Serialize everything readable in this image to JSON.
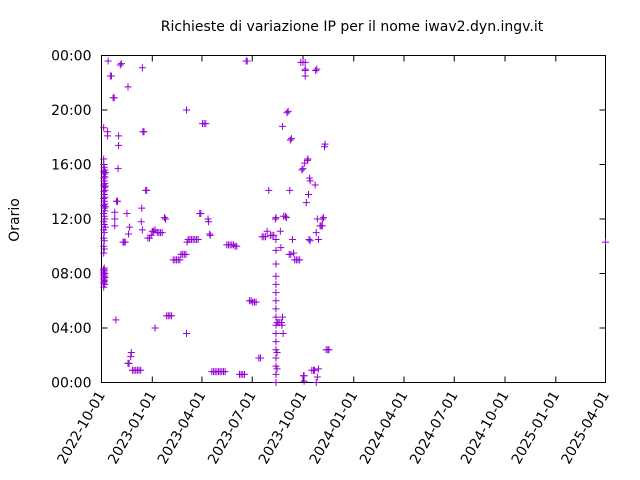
{
  "chart_data": {
    "type": "scatter",
    "title": "Richieste di variazione IP per il nome iwav2.dyn.ingv.it",
    "xlabel": "",
    "ylabel": "Orario",
    "x_axis": {
      "type": "date",
      "range": [
        "2022-10-01",
        "2025-04-01"
      ],
      "tick_labels": [
        "2022-10-01",
        "2023-01-01",
        "2023-04-01",
        "2023-07-01",
        "2023-10-01",
        "2024-01-01",
        "2024-04-01",
        "2024-07-01",
        "2024-10-01",
        "2025-01-01",
        "2025-04-01"
      ]
    },
    "y_axis": {
      "range": [
        "00:00",
        "24:00"
      ],
      "tick_labels": [
        "00:00",
        "04:00",
        "08:00",
        "12:00",
        "16:00",
        "20:00",
        "00:00"
      ]
    },
    "marker": "+",
    "color": "#9400d3",
    "grid": false,
    "legend": "none",
    "points": [
      [
        "2022-10-05",
        7.6
      ],
      [
        "2022-10-05",
        7.9
      ],
      [
        "2022-10-05",
        8.1
      ],
      [
        "2022-10-05",
        8.3
      ],
      [
        "2022-10-05",
        7.3
      ],
      [
        "2022-10-05",
        7.0
      ],
      [
        "2022-10-06",
        7.5
      ],
      [
        "2022-10-06",
        7.8
      ],
      [
        "2022-10-06",
        8.0
      ],
      [
        "2022-10-06",
        8.2
      ],
      [
        "2022-10-06",
        7.4
      ],
      [
        "2022-10-06",
        8.4
      ],
      [
        "2022-10-07",
        7.7
      ],
      [
        "2022-10-07",
        8.0
      ],
      [
        "2022-10-07",
        7.2
      ],
      [
        "2022-10-05",
        9.5
      ],
      [
        "2022-10-05",
        10.0
      ],
      [
        "2022-10-05",
        10.6
      ],
      [
        "2022-10-05",
        11.2
      ],
      [
        "2022-10-05",
        11.8
      ],
      [
        "2022-10-05",
        12.4
      ],
      [
        "2022-10-05",
        13.0
      ],
      [
        "2022-10-05",
        13.5
      ],
      [
        "2022-10-05",
        14.0
      ],
      [
        "2022-10-05",
        14.5
      ],
      [
        "2022-10-05",
        15.0
      ],
      [
        "2022-10-05",
        15.5
      ],
      [
        "2022-10-05",
        16.0
      ],
      [
        "2022-10-06",
        9.8
      ],
      [
        "2022-10-06",
        10.4
      ],
      [
        "2022-10-06",
        11.0
      ],
      [
        "2022-10-06",
        11.6
      ],
      [
        "2022-10-06",
        12.2
      ],
      [
        "2022-10-06",
        12.8
      ],
      [
        "2022-10-06",
        13.3
      ],
      [
        "2022-10-06",
        13.8
      ],
      [
        "2022-10-06",
        14.3
      ],
      [
        "2022-10-06",
        14.8
      ],
      [
        "2022-10-06",
        15.3
      ],
      [
        "2022-10-06",
        15.8
      ],
      [
        "2022-10-07",
        12.0
      ],
      [
        "2022-10-07",
        12.6
      ],
      [
        "2022-10-07",
        13.1
      ],
      [
        "2022-10-07",
        13.6
      ],
      [
        "2022-10-07",
        14.1
      ],
      [
        "2022-10-07",
        14.6
      ],
      [
        "2022-10-07",
        15.1
      ],
      [
        "2022-10-07",
        15.6
      ],
      [
        "2022-10-08",
        11.4
      ],
      [
        "2022-10-08",
        12.9
      ],
      [
        "2022-10-08",
        14.4
      ],
      [
        "2022-10-08",
        15.4
      ],
      [
        "2022-10-05",
        16.4
      ],
      [
        "2022-10-05",
        18.7
      ],
      [
        "2022-10-12",
        18.4
      ],
      [
        "2022-10-12",
        18.1
      ],
      [
        "2022-10-13",
        23.6
      ],
      [
        "2022-10-17",
        22.5
      ],
      [
        "2022-10-19",
        22.5
      ],
      [
        "2022-10-22",
        20.9
      ],
      [
        "2022-10-24",
        20.9
      ],
      [
        "2022-10-27",
        4.6
      ],
      [
        "2022-10-25",
        11.5
      ],
      [
        "2022-10-25",
        12.0
      ],
      [
        "2022-10-25",
        12.5
      ],
      [
        "2022-10-28",
        13.3
      ],
      [
        "2022-10-30",
        13.3
      ],
      [
        "2022-10-31",
        15.7
      ],
      [
        "2022-11-01",
        18.1
      ],
      [
        "2022-11-01",
        17.4
      ],
      [
        "2022-11-04",
        23.3
      ],
      [
        "2022-11-06",
        23.4
      ],
      [
        "2022-11-09",
        10.3
      ],
      [
        "2022-11-11",
        10.3
      ],
      [
        "2022-11-13",
        10.3
      ],
      [
        "2022-11-16",
        12.4
      ],
      [
        "2022-11-18",
        21.7
      ],
      [
        "2022-11-19",
        10.9
      ],
      [
        "2022-11-21",
        11.4
      ],
      [
        "2022-11-18",
        1.4
      ],
      [
        "2022-11-20",
        1.4
      ],
      [
        "2022-11-23",
        1.9
      ],
      [
        "2022-11-24",
        2.2
      ],
      [
        "2022-11-26",
        0.9
      ],
      [
        "2022-11-29",
        0.9
      ],
      [
        "2022-12-02",
        0.9
      ],
      [
        "2022-12-05",
        0.9
      ],
      [
        "2022-12-08",
        0.9
      ],
      [
        "2022-12-11",
        0.9
      ],
      [
        "2022-12-14",
        23.1
      ],
      [
        "2022-12-13",
        12.8
      ],
      [
        "2022-12-12",
        11.8
      ],
      [
        "2022-12-14",
        11.2
      ],
      [
        "2022-12-15",
        18.4
      ],
      [
        "2022-12-17",
        18.4
      ],
      [
        "2022-12-20",
        14.1
      ],
      [
        "2022-12-22",
        14.1
      ],
      [
        "2022-12-24",
        10.6
      ],
      [
        "2022-12-27",
        10.6
      ],
      [
        "2022-12-30",
        10.8
      ],
      [
        "2023-01-01",
        11.1
      ],
      [
        "2023-01-03",
        11.1
      ],
      [
        "2023-01-06",
        11.2
      ],
      [
        "2023-01-06",
        4.0
      ],
      [
        "2023-01-10",
        11.0
      ],
      [
        "2023-01-13",
        11.0
      ],
      [
        "2023-01-16",
        11.0
      ],
      [
        "2023-01-19",
        11.0
      ],
      [
        "2023-01-23",
        12.1
      ],
      [
        "2023-01-25",
        12.0
      ],
      [
        "2023-01-27",
        4.9
      ],
      [
        "2023-01-30",
        4.9
      ],
      [
        "2023-02-02",
        4.9
      ],
      [
        "2023-02-05",
        4.9
      ],
      [
        "2023-02-08",
        9.0
      ],
      [
        "2023-02-11",
        9.0
      ],
      [
        "2023-02-14",
        9.0
      ],
      [
        "2023-02-17",
        9.0
      ],
      [
        "2023-02-20",
        9.0
      ],
      [
        "2023-02-22",
        9.4
      ],
      [
        "2023-02-25",
        9.4
      ],
      [
        "2023-02-28",
        9.4
      ],
      [
        "2023-03-03",
        9.4
      ],
      [
        "2023-03-04",
        20.0
      ],
      [
        "2023-03-04",
        3.6
      ],
      [
        "2023-03-05",
        10.3
      ],
      [
        "2023-03-07",
        10.5
      ],
      [
        "2023-03-10",
        10.5
      ],
      [
        "2023-03-13",
        10.5
      ],
      [
        "2023-03-16",
        10.5
      ],
      [
        "2023-03-19",
        10.5
      ],
      [
        "2023-03-22",
        10.5
      ],
      [
        "2023-03-25",
        10.5
      ],
      [
        "2023-03-28",
        12.4
      ],
      [
        "2023-03-30",
        12.4
      ],
      [
        "2023-04-02",
        19.0
      ],
      [
        "2023-04-05",
        19.0
      ],
      [
        "2023-04-08",
        19.0
      ],
      [
        "2023-04-12",
        12.0
      ],
      [
        "2023-04-13",
        11.8
      ],
      [
        "2023-04-15",
        10.9
      ],
      [
        "2023-04-16",
        10.8
      ],
      [
        "2023-04-19",
        0.8
      ],
      [
        "2023-04-22",
        0.8
      ],
      [
        "2023-04-25",
        0.8
      ],
      [
        "2023-04-28",
        0.8
      ],
      [
        "2023-05-01",
        0.8
      ],
      [
        "2023-05-04",
        0.8
      ],
      [
        "2023-05-07",
        0.8
      ],
      [
        "2023-05-10",
        0.8
      ],
      [
        "2023-05-13",
        0.8
      ],
      [
        "2023-05-16",
        10.1
      ],
      [
        "2023-05-19",
        10.1
      ],
      [
        "2023-05-22",
        10.1
      ],
      [
        "2023-05-25",
        10.1
      ],
      [
        "2023-05-28",
        10.1
      ],
      [
        "2023-05-31",
        10.0
      ],
      [
        "2023-06-03",
        10.0
      ],
      [
        "2023-06-08",
        0.6
      ],
      [
        "2023-06-11",
        0.6
      ],
      [
        "2023-06-14",
        0.6
      ],
      [
        "2023-06-17",
        0.6
      ],
      [
        "2023-06-20",
        23.6
      ],
      [
        "2023-06-22",
        23.6
      ],
      [
        "2023-06-26",
        6.0
      ],
      [
        "2023-06-29",
        6.0
      ],
      [
        "2023-07-02",
        5.9
      ],
      [
        "2023-07-05",
        5.9
      ],
      [
        "2023-07-08",
        5.9
      ],
      [
        "2023-07-13",
        1.8
      ],
      [
        "2023-07-16",
        1.8
      ],
      [
        "2023-07-19",
        10.7
      ],
      [
        "2023-07-22",
        10.7
      ],
      [
        "2023-07-25",
        10.7
      ],
      [
        "2023-07-28",
        11.1
      ],
      [
        "2023-07-31",
        14.1
      ],
      [
        "2023-08-03",
        10.8
      ],
      [
        "2023-08-06",
        10.8
      ],
      [
        "2023-08-09",
        10.8
      ],
      [
        "2023-08-12",
        12.0
      ],
      [
        "2023-08-13",
        12.1
      ],
      [
        "2023-08-13",
        0.0
      ],
      [
        "2023-08-13",
        0.6
      ],
      [
        "2023-08-13",
        1.2
      ],
      [
        "2023-08-13",
        1.8
      ],
      [
        "2023-08-13",
        2.4
      ],
      [
        "2023-08-13",
        3.0
      ],
      [
        "2023-08-13",
        3.6
      ],
      [
        "2023-08-13",
        4.2
      ],
      [
        "2023-08-13",
        4.8
      ],
      [
        "2023-08-13",
        5.4
      ],
      [
        "2023-08-13",
        6.0
      ],
      [
        "2023-08-13",
        6.6
      ],
      [
        "2023-08-13",
        7.2
      ],
      [
        "2023-08-13",
        7.8
      ],
      [
        "2023-08-13",
        8.7
      ],
      [
        "2023-08-13",
        9.7
      ],
      [
        "2023-08-13",
        10.5
      ],
      [
        "2023-08-15",
        1.0
      ],
      [
        "2023-08-15",
        2.2
      ],
      [
        "2023-08-15",
        4.4
      ],
      [
        "2023-08-17",
        4.4
      ],
      [
        "2023-08-20",
        4.4
      ],
      [
        "2023-08-23",
        4.4
      ],
      [
        "2023-08-25",
        4.8
      ],
      [
        "2023-08-26",
        3.6
      ],
      [
        "2023-08-24",
        4.2
      ],
      [
        "2023-08-21",
        11.1
      ],
      [
        "2023-08-22",
        9.9
      ],
      [
        "2023-08-25",
        18.8
      ],
      [
        "2023-08-27",
        12.2
      ],
      [
        "2023-08-30",
        12.2
      ],
      [
        "2023-09-01",
        12.1
      ],
      [
        "2023-09-02",
        19.8
      ],
      [
        "2023-09-04",
        19.9
      ],
      [
        "2023-09-06",
        9.4
      ],
      [
        "2023-09-09",
        9.4
      ],
      [
        "2023-09-08",
        17.8
      ],
      [
        "2023-09-10",
        17.9
      ],
      [
        "2023-09-07",
        14.1
      ],
      [
        "2023-09-12",
        10.5
      ],
      [
        "2023-09-14",
        9.5
      ],
      [
        "2023-09-16",
        9.0
      ],
      [
        "2023-09-19",
        9.0
      ],
      [
        "2023-09-22",
        9.0
      ],
      [
        "2023-09-25",
        9.0
      ],
      [
        "2023-09-27",
        23.5
      ],
      [
        "2023-09-29",
        15.6
      ],
      [
        "2023-10-01",
        15.7
      ],
      [
        "2023-10-01",
        23.5
      ],
      [
        "2023-10-02",
        0.5
      ],
      [
        "2023-10-03",
        0.1
      ],
      [
        "2023-10-03",
        0.5
      ],
      [
        "2023-10-04",
        16.1
      ],
      [
        "2023-10-05",
        22.9
      ],
      [
        "2023-10-05",
        22.5
      ],
      [
        "2023-10-05",
        23.0
      ],
      [
        "2023-10-05",
        23.5
      ],
      [
        "2023-10-07",
        13.2
      ],
      [
        "2023-10-09",
        16.3
      ],
      [
        "2023-10-10",
        16.4
      ],
      [
        "2023-10-11",
        13.8
      ],
      [
        "2023-10-13",
        15.0
      ],
      [
        "2023-10-14",
        14.8
      ],
      [
        "2023-10-12",
        10.5
      ],
      [
        "2023-10-14",
        10.4
      ],
      [
        "2023-10-17",
        0.9
      ],
      [
        "2023-10-20",
        0.9
      ],
      [
        "2023-10-22",
        0.9
      ],
      [
        "2023-10-24",
        22.9
      ],
      [
        "2023-10-26",
        23.0
      ],
      [
        "2023-10-23",
        14.5
      ],
      [
        "2023-10-25",
        0.0
      ],
      [
        "2023-10-27",
        0.4
      ],
      [
        "2023-10-29",
        1.0
      ],
      [
        "2023-10-25",
        11.0
      ],
      [
        "2023-10-27",
        12.0
      ],
      [
        "2023-10-29",
        10.5
      ],
      [
        "2023-11-01",
        11.5
      ],
      [
        "2023-11-03",
        11.5
      ],
      [
        "2023-11-05",
        11.5
      ],
      [
        "2023-11-05",
        12.0
      ],
      [
        "2023-11-07",
        12.1
      ],
      [
        "2023-11-09",
        17.3
      ],
      [
        "2023-11-10",
        17.5
      ],
      [
        "2023-11-12",
        2.4
      ],
      [
        "2023-11-15",
        2.4
      ],
      [
        "2023-11-17",
        2.4
      ],
      [
        "2025-04-01",
        10.3
      ]
    ]
  }
}
